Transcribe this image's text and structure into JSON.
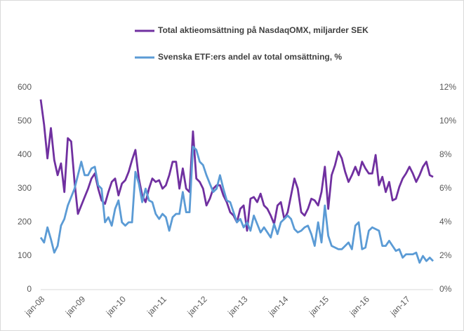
{
  "chart_data": {
    "type": "line",
    "categories": [
      "jan-08",
      null,
      null,
      null,
      null,
      null,
      null,
      null,
      null,
      null,
      null,
      null,
      "jan-09",
      null,
      null,
      null,
      null,
      null,
      null,
      null,
      null,
      null,
      null,
      null,
      "jan-10",
      null,
      null,
      null,
      null,
      null,
      null,
      null,
      null,
      null,
      null,
      null,
      "jan-11",
      null,
      null,
      null,
      null,
      null,
      null,
      null,
      null,
      null,
      null,
      null,
      "jan-12",
      null,
      null,
      null,
      null,
      null,
      null,
      null,
      null,
      null,
      null,
      null,
      "jan-13",
      null,
      null,
      null,
      null,
      null,
      null,
      null,
      null,
      null,
      null,
      null,
      "jan-14",
      null,
      null,
      null,
      null,
      null,
      null,
      null,
      null,
      null,
      null,
      null,
      "jan-15",
      null,
      null,
      null,
      null,
      null,
      null,
      null,
      null,
      null,
      null,
      null,
      "jan-16",
      null,
      null,
      null,
      null,
      null,
      null,
      null,
      null,
      null,
      null,
      null,
      "jan-17",
      null,
      null,
      null,
      null,
      null,
      null,
      null,
      null
    ],
    "series": [
      {
        "name": "Total aktieomsättning på NasdaqOMX, miljarder SEK",
        "color": "#7030a0",
        "values": [
          565,
          490,
          390,
          480,
          385,
          340,
          375,
          290,
          450,
          440,
          320,
          225,
          250,
          275,
          300,
          330,
          345,
          300,
          265,
          255,
          290,
          320,
          330,
          280,
          315,
          325,
          350,
          385,
          415,
          330,
          280,
          260,
          300,
          330,
          320,
          325,
          300,
          310,
          340,
          380,
          380,
          300,
          360,
          300,
          290,
          470,
          330,
          320,
          300,
          250,
          270,
          300,
          310,
          310,
          280,
          260,
          230,
          220,
          200,
          240,
          250,
          175,
          270,
          275,
          260,
          285,
          250,
          240,
          220,
          195,
          250,
          260,
          210,
          230,
          280,
          330,
          300,
          230,
          220,
          240,
          270,
          265,
          250,
          290,
          365,
          240,
          340,
          370,
          410,
          390,
          350,
          320,
          340,
          365,
          340,
          380,
          360,
          345,
          345,
          400,
          310,
          335,
          290,
          320,
          265,
          270,
          305,
          330,
          345,
          365,
          345,
          320,
          340,
          365,
          380,
          340,
          335
        ]
      },
      {
        "name": "Svenska ETF:ers andel av total omsättning, %",
        "color": "#5b9bd5",
        "axis": "y2",
        "values": [
          3.1,
          2.8,
          3.7,
          3.0,
          2.2,
          2.6,
          3.8,
          4.2,
          5.0,
          5.5,
          6.0,
          6.8,
          7.6,
          6.8,
          6.8,
          7.2,
          7.3,
          6.2,
          6.0,
          4.0,
          4.3,
          3.8,
          4.8,
          5.3,
          4.0,
          3.8,
          4.0,
          4.0,
          7.0,
          6.3,
          5.2,
          6.0,
          5.3,
          5.2,
          4.5,
          4.2,
          4.5,
          4.3,
          3.5,
          4.3,
          4.5,
          4.5,
          5.8,
          4.6,
          4.6,
          8.5,
          8.3,
          7.6,
          7.4,
          6.8,
          6.3,
          5.8,
          6.0,
          6.8,
          6.0,
          5.3,
          5.2,
          4.6,
          4.0,
          4.2,
          3.7,
          4.0,
          3.5,
          4.4,
          3.9,
          3.4,
          3.7,
          3.4,
          3.1,
          3.9,
          3.3,
          4.0,
          4.2,
          4.4,
          4.2,
          3.6,
          3.4,
          3.5,
          3.7,
          3.8,
          3.3,
          2.6,
          4.0,
          2.8,
          5.0,
          3.2,
          2.6,
          2.5,
          2.4,
          2.4,
          2.6,
          2.8,
          2.4,
          3.8,
          4.0,
          2.4,
          2.5,
          3.5,
          3.7,
          3.6,
          3.5,
          2.6,
          2.6,
          2.9,
          2.6,
          2.3,
          2.4,
          1.9,
          2.1,
          2.1,
          2.1,
          2.2,
          1.6,
          2.0,
          1.7,
          1.9,
          1.7
        ]
      }
    ],
    "ylim": [
      0,
      600
    ],
    "yticks": [
      0,
      100,
      200,
      300,
      400,
      500,
      600
    ],
    "y2lim": [
      0,
      12
    ],
    "y2ticks": [
      {
        "value": 0,
        "label": "0%"
      },
      {
        "value": 2,
        "label": "2%"
      },
      {
        "value": 4,
        "label": "4%"
      },
      {
        "value": 6,
        "label": "6%"
      },
      {
        "value": 8,
        "label": "8%"
      },
      {
        "value": 10,
        "label": "10%"
      },
      {
        "value": 12,
        "label": "12%"
      }
    ],
    "legend": "top"
  }
}
